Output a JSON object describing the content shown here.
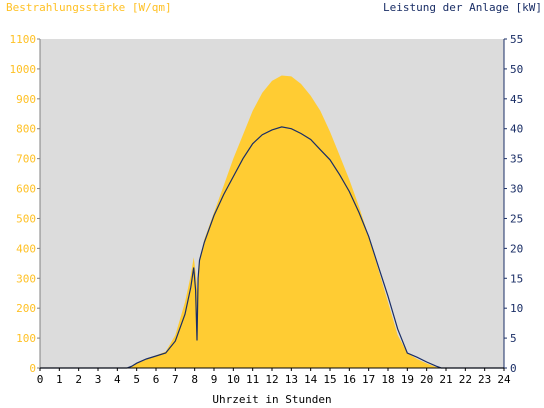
{
  "chart_data": {
    "type": "area",
    "left_title": "Bestrahlungsstärke [W/qm]",
    "right_title": "Leistung der Anlage [kW]",
    "xlabel": "Uhrzeit in Stunden",
    "x_range": [
      0,
      24
    ],
    "x_ticks": [
      "0",
      "1",
      "2",
      "3",
      "4",
      "5",
      "6",
      "7",
      "8",
      "9",
      "10",
      "11",
      "12",
      "13",
      "14",
      "15",
      "16",
      "17",
      "18",
      "19",
      "20",
      "21",
      "22",
      "23",
      "24"
    ],
    "y_left_range": [
      0,
      1100
    ],
    "y_left_ticks": [
      "0",
      "100",
      "200",
      "300",
      "400",
      "500",
      "600",
      "700",
      "800",
      "900",
      "1000",
      "1100"
    ],
    "y_right_range": [
      0,
      55
    ],
    "y_right_ticks": [
      "0",
      "5",
      "10",
      "15",
      "20",
      "25",
      "30",
      "35",
      "40",
      "45",
      "50",
      "55"
    ],
    "colors": {
      "irradiance_fill": "#ffcc33",
      "power_line": "#1a2e66",
      "plot_background": "#dcdcdc",
      "left_axis_text": "#ffc125",
      "right_axis_text": "#1a2e66"
    },
    "series": [
      {
        "axis": "left",
        "style": "filled-area",
        "points": [
          [
            0,
            0
          ],
          [
            4.5,
            0
          ],
          [
            4.75,
            5
          ],
          [
            5,
            15
          ],
          [
            5.5,
            28
          ],
          [
            6,
            42
          ],
          [
            6.5,
            55
          ],
          [
            7,
            110
          ],
          [
            7.5,
            220
          ],
          [
            7.8,
            310
          ],
          [
            7.95,
            370
          ],
          [
            8.05,
            320
          ],
          [
            8.15,
            250
          ],
          [
            8.25,
            360
          ],
          [
            8.5,
            430
          ],
          [
            9,
            520
          ],
          [
            9.5,
            610
          ],
          [
            10,
            700
          ],
          [
            10.5,
            780
          ],
          [
            11,
            860
          ],
          [
            11.5,
            920
          ],
          [
            12,
            960
          ],
          [
            12.5,
            978
          ],
          [
            13,
            975
          ],
          [
            13.5,
            950
          ],
          [
            14,
            910
          ],
          [
            14.5,
            860
          ],
          [
            15,
            790
          ],
          [
            15.5,
            710
          ],
          [
            16,
            630
          ],
          [
            16.5,
            540
          ],
          [
            17,
            440
          ],
          [
            17.5,
            330
          ],
          [
            18,
            220
          ],
          [
            18.5,
            110
          ],
          [
            19,
            50
          ],
          [
            19.5,
            30
          ],
          [
            20,
            15
          ],
          [
            20.5,
            3
          ],
          [
            20.75,
            0
          ],
          [
            24,
            0
          ]
        ]
      },
      {
        "axis": "right",
        "style": "line",
        "points": [
          [
            0,
            0
          ],
          [
            4.5,
            0
          ],
          [
            4.75,
            0.3
          ],
          [
            5,
            0.8
          ],
          [
            5.5,
            1.5
          ],
          [
            6,
            2
          ],
          [
            6.5,
            2.5
          ],
          [
            7,
            4.5
          ],
          [
            7.5,
            9
          ],
          [
            7.8,
            13.5
          ],
          [
            7.95,
            16.8
          ],
          [
            8.05,
            13
          ],
          [
            8.12,
            4.6
          ],
          [
            8.18,
            15
          ],
          [
            8.25,
            18
          ],
          [
            8.5,
            21
          ],
          [
            9,
            25.5
          ],
          [
            9.5,
            29
          ],
          [
            10,
            32
          ],
          [
            10.5,
            35
          ],
          [
            11,
            37.5
          ],
          [
            11.5,
            39
          ],
          [
            12,
            39.8
          ],
          [
            12.5,
            40.3
          ],
          [
            13,
            40
          ],
          [
            13.5,
            39.2
          ],
          [
            14,
            38.2
          ],
          [
            14.5,
            36.5
          ],
          [
            15,
            34.8
          ],
          [
            15.5,
            32.3
          ],
          [
            16,
            29.5
          ],
          [
            16.5,
            26
          ],
          [
            17,
            22
          ],
          [
            17.5,
            17
          ],
          [
            18,
            12
          ],
          [
            18.5,
            6.5
          ],
          [
            19,
            2.5
          ],
          [
            19.5,
            1.8
          ],
          [
            20,
            1
          ],
          [
            20.5,
            0.3
          ],
          [
            20.75,
            0
          ],
          [
            24,
            0
          ]
        ]
      }
    ]
  }
}
